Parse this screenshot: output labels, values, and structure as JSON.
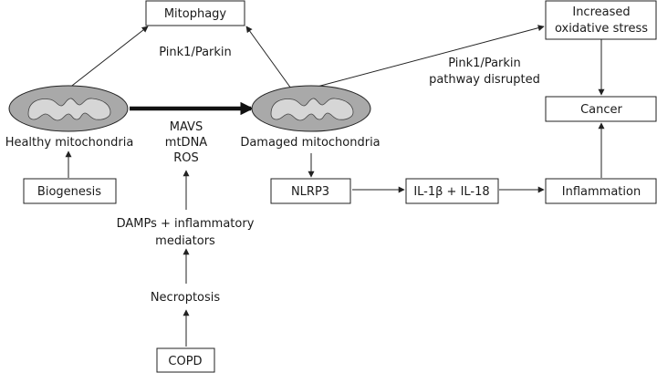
{
  "nodes": {
    "mitophagy": "Mitophagy",
    "pink1_parkin": "Pink1/Parkin",
    "increased_oxidative_stress": [
      "Increased",
      "oxidative stress"
    ],
    "pathway_disrupted": [
      "Pink1/Parkin",
      "pathway disrupted"
    ],
    "cancer": "Cancer",
    "healthy_mitochondria": "Healthy mitochondria",
    "damaged_mitochondria": "Damaged mitochondria",
    "mavs_mtdna_ros": [
      "MAVS",
      "mtDNA",
      "ROS"
    ],
    "biogenesis": "Biogenesis",
    "nlrp3": "NLRP3",
    "il1b_il18": "IL-1β + IL-18",
    "inflammation": "Inflammation",
    "damps": [
      "DAMPs + inflammatory",
      "mediators"
    ],
    "necroptosis": "Necroptosis",
    "copd": "COPD"
  },
  "colors": {
    "mito_outer": "#a9a9a9",
    "mito_inner": "#d6d6d6",
    "line": "#222222"
  }
}
